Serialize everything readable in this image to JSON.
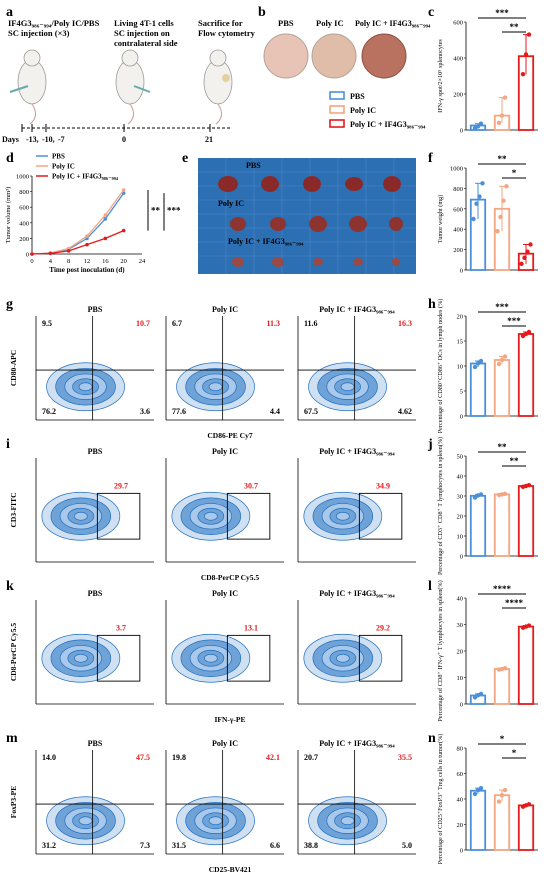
{
  "panel_letters": [
    "a",
    "b",
    "c",
    "d",
    "e",
    "f",
    "g",
    "h",
    "i",
    "j",
    "k",
    "l",
    "m",
    "n"
  ],
  "panel_a": {
    "step1": [
      "IF4G3₉₈₆₋₉₉₄/Poly IC/PBS",
      "SC injection (×3)"
    ],
    "step2": [
      "Living 4T-1 cells",
      "SC injection on",
      "contralateral side"
    ],
    "step3": [
      "Sacrifice for",
      "Flow cytometry"
    ],
    "days_label": "Days",
    "days": [
      "-13,",
      "-10,",
      "-7",
      "0",
      "21"
    ]
  },
  "groups": [
    "PBS",
    "Poly IC",
    "Poly IC + IF4G3₉₈₆₋₉₉₄"
  ],
  "colors": {
    "pbs": "#4a90d9",
    "polyic": "#f4a582",
    "combo": "#e41a1c",
    "flow": "#1f77b4"
  },
  "photo_e": {
    "labels": [
      "PBS",
      "Poly IC",
      "Poly IC + IF4G3₉₈₆₋₉₉₄"
    ]
  },
  "legend_b": [
    "PBS",
    "Poly IC",
    "Poly IC + IF4G3₉₈₆₋₉₉₄"
  ],
  "flow_rows": [
    {
      "letter": "g",
      "type": "quad",
      "ylabel": "CD80-APC",
      "xlabel": "CD86-PE Cy7",
      "plots": [
        {
          "title": "PBS",
          "q": [
            "9.5",
            "10.7",
            "76.2",
            "3.6"
          ]
        },
        {
          "title": "Poly IC",
          "q": [
            "6.7",
            "11.3",
            "77.6",
            "4.4"
          ]
        },
        {
          "title": "Poly IC + IF4G3₉₈₆₋₉₉₄",
          "q": [
            "11.6",
            "16.3",
            "67.5",
            "4.62"
          ]
        }
      ]
    },
    {
      "letter": "i",
      "type": "gate",
      "ylabel": "CD3-FITC",
      "xlabel": "CD8-PerCP Cy5.5",
      "plots": [
        {
          "title": "PBS",
          "value": "29.7"
        },
        {
          "title": "Poly IC",
          "value": "30.7"
        },
        {
          "title": "Poly IC + IF4G3₉₈₆₋₉₉₄",
          "value": "34.9"
        }
      ]
    },
    {
      "letter": "k",
      "type": "gate",
      "ylabel": "CD8-PerCP Cy5.5",
      "xlabel": "IFN-γ-PE",
      "plots": [
        {
          "title": "PBS",
          "value": "3.7"
        },
        {
          "title": "Poly IC",
          "value": "13.1"
        },
        {
          "title": "Poly IC + IF4G3₉₈₆₋₉₉₄",
          "value": "29.2"
        }
      ]
    },
    {
      "letter": "m",
      "type": "quad",
      "ylabel": "FoxP3-PE",
      "xlabel": "CD25-BV421",
      "plots": [
        {
          "title": "PBS",
          "q": [
            "14.0",
            "47.5",
            "31.2",
            "7.3"
          ]
        },
        {
          "title": "Poly IC",
          "q": [
            "19.8",
            "42.1",
            "31.5",
            "6.6"
          ]
        },
        {
          "title": "Poly IC + IF4G3₉₈₆₋₉₉₄",
          "q": [
            "20.7",
            "35.5",
            "38.8",
            "5.0"
          ]
        }
      ]
    }
  ],
  "chart_data": [
    {
      "panel": "c",
      "type": "bar",
      "categories": [
        "PBS",
        "Poly IC",
        "Poly IC + IF4G3"
      ],
      "values": [
        25,
        80,
        410
      ],
      "points": [
        [
          10,
          20,
          35
        ],
        [
          40,
          80,
          180
        ],
        [
          310,
          420,
          530
        ]
      ],
      "ylabel": "IFN-γ spot/2×10⁵ splenocytes",
      "ylim": [
        0,
        600
      ],
      "yticks": [
        0,
        200,
        400,
        600
      ],
      "sig": [
        {
          "a": 0,
          "b": 2,
          "label": "***"
        },
        {
          "a": 1,
          "b": 2,
          "label": "**"
        }
      ]
    },
    {
      "panel": "d",
      "type": "line",
      "xlabel": "Time post inoculation (d)",
      "ylabel": "Tumor volume (mm³)",
      "x": [
        0,
        4,
        8,
        12,
        16,
        20
      ],
      "xlim": [
        0,
        24
      ],
      "xticks": [
        0,
        4,
        8,
        12,
        16,
        20,
        24
      ],
      "ylim": [
        0,
        1000
      ],
      "yticks": [
        0,
        200,
        400,
        600,
        800,
        1000
      ],
      "series": [
        {
          "name": "PBS",
          "values": [
            0,
            10,
            60,
            200,
            450,
            780
          ]
        },
        {
          "name": "Poly IC",
          "values": [
            0,
            12,
            70,
            230,
            500,
            820
          ]
        },
        {
          "name": "Poly IC + IF4G3",
          "values": [
            0,
            8,
            40,
            120,
            200,
            300
          ]
        }
      ],
      "sig": [
        "**",
        "***"
      ]
    },
    {
      "panel": "f",
      "type": "bar",
      "categories": [
        "PBS",
        "Poly IC",
        "Poly IC + IF4G3"
      ],
      "values": [
        690,
        600,
        160
      ],
      "points": [
        [
          500,
          650,
          720,
          850
        ],
        [
          380,
          520,
          680,
          820
        ],
        [
          60,
          120,
          180,
          250
        ]
      ],
      "ylabel": "Tumor weight (mg)",
      "ylim": [
        0,
        1000
      ],
      "yticks": [
        0,
        200,
        400,
        600,
        800,
        1000
      ],
      "sig": [
        {
          "a": 0,
          "b": 2,
          "label": "**"
        },
        {
          "a": 1,
          "b": 2,
          "label": "*"
        }
      ]
    },
    {
      "panel": "h",
      "type": "bar",
      "categories": [
        "PBS",
        "Poly IC",
        "Poly IC + IF4G3"
      ],
      "values": [
        10.5,
        11.2,
        16.4
      ],
      "points": [
        [
          9.8,
          10.5,
          11.0
        ],
        [
          10.4,
          11.2,
          11.9
        ],
        [
          16.0,
          16.4,
          16.8
        ]
      ],
      "ylabel": "Percentage of CD80⁺CD86⁺ DCs in lymph nodes (%)",
      "ylim": [
        0,
        20
      ],
      "yticks": [
        0,
        5,
        10,
        15,
        20
      ],
      "sig": [
        {
          "a": 0,
          "b": 2,
          "label": "***"
        },
        {
          "a": 1,
          "b": 2,
          "label": "***"
        }
      ]
    },
    {
      "panel": "j",
      "type": "bar",
      "categories": [
        "PBS",
        "Poly IC",
        "Poly IC + IF4G3"
      ],
      "values": [
        30.1,
        30.8,
        35.0
      ],
      "points": [
        [
          29.2,
          30.3,
          30.8
        ],
        [
          30.5,
          30.8,
          31.1
        ],
        [
          34.6,
          35.0,
          35.4
        ]
      ],
      "ylabel": "Percentage of CD3⁺ CD8⁺ T lymphocytes in spleen(%)",
      "ylim": [
        0,
        50
      ],
      "yticks": [
        0,
        10,
        20,
        30,
        40,
        50
      ],
      "sig": [
        {
          "a": 0,
          "b": 2,
          "label": "**"
        },
        {
          "a": 1,
          "b": 2,
          "label": "**"
        }
      ]
    },
    {
      "panel": "l",
      "type": "bar",
      "categories": [
        "PBS",
        "Poly IC",
        "Poly IC + IF4G3"
      ],
      "values": [
        3.2,
        13.2,
        29.2
      ],
      "points": [
        [
          2.5,
          3.3,
          3.8
        ],
        [
          13.0,
          13.2,
          13.5
        ],
        [
          28.8,
          29.2,
          29.6
        ]
      ],
      "ylabel": "Percentage of CD8⁺ IFN-γ⁺ T lymphocytes in spleen(%)",
      "ylim": [
        0,
        40
      ],
      "yticks": [
        0,
        10,
        20,
        30,
        40
      ],
      "sig": [
        {
          "a": 0,
          "b": 2,
          "label": "****"
        },
        {
          "a": 1,
          "b": 2,
          "label": "****"
        }
      ]
    },
    {
      "panel": "n",
      "type": "bar",
      "categories": [
        "PBS",
        "Poly IC",
        "Poly IC + IF4G3"
      ],
      "values": [
        46.5,
        43.0,
        35.0
      ],
      "points": [
        [
          44.0,
          47.0,
          48.5
        ],
        [
          38.0,
          43.0,
          47.0
        ],
        [
          34.0,
          35.0,
          35.8
        ]
      ],
      "ylabel": "Percentage of CD25⁺FoxP3⁺ Treg cells in tumor(%)",
      "ylim": [
        0,
        80
      ],
      "yticks": [
        0,
        20,
        40,
        60,
        80
      ],
      "sig": [
        {
          "a": 0,
          "b": 2,
          "label": "*"
        },
        {
          "a": 1,
          "b": 2,
          "label": "*"
        }
      ]
    }
  ]
}
